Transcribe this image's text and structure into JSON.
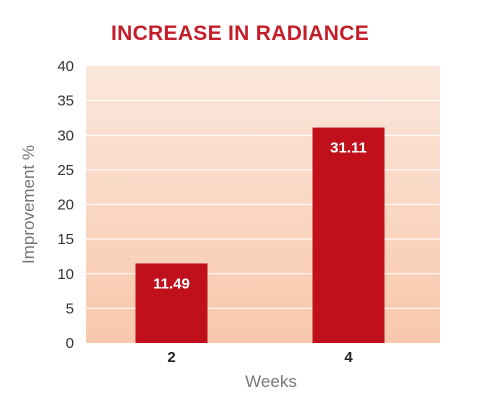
{
  "chart_data": {
    "type": "bar",
    "title": "INCREASE IN RADIANCE",
    "xlabel": "Weeks",
    "ylabel": "Improvement %",
    "categories": [
      "2",
      "4"
    ],
    "values": [
      11.49,
      31.11
    ],
    "data_labels": [
      "11.49",
      "31.11"
    ],
    "ylim": [
      0,
      40
    ],
    "yticks": [
      0,
      5,
      10,
      15,
      20,
      25,
      30,
      35,
      40
    ],
    "grid": true,
    "colors": {
      "bar": "#c0101c",
      "title": "#c41e2a",
      "plot_bg_top": "#fbe7dc",
      "plot_bg_bottom": "#f8c8ab",
      "grid": "#ffffff"
    }
  }
}
